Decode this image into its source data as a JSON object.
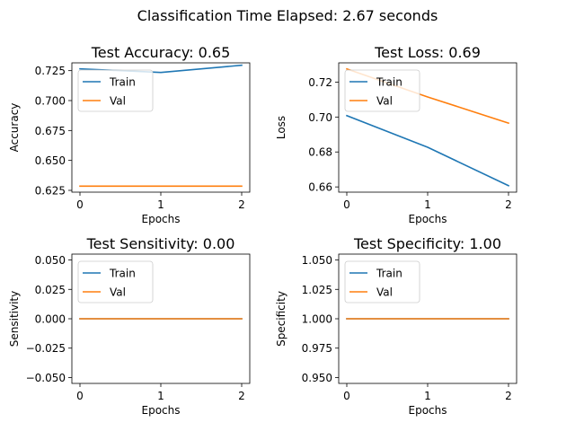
{
  "figure": {
    "suptitle": "Classification Time Elapsed: 2.67 seconds"
  },
  "chart_data": [
    {
      "type": "line",
      "title": "Test Accuracy: 0.65",
      "xlabel": "Epochs",
      "ylabel": "Accuracy",
      "x": [
        0,
        1,
        2
      ],
      "xticks": [
        "0",
        "1",
        "2"
      ],
      "xlim": [
        -0.1,
        2.1
      ],
      "ylim": [
        0.6235,
        0.7315
      ],
      "yticks": [
        "0.625",
        "0.650",
        "0.675",
        "0.700",
        "0.725"
      ],
      "grid": false,
      "legend": "upper left",
      "series": [
        {
          "name": "Train",
          "color": "#1f77b4",
          "values": [
            0.7265,
            0.7235,
            0.7295
          ]
        },
        {
          "name": "Val",
          "color": "#ff7f0e",
          "values": [
            0.6285,
            0.6285,
            0.6285
          ]
        }
      ]
    },
    {
      "type": "line",
      "title": "Test Loss: 0.69",
      "xlabel": "Epochs",
      "ylabel": "Loss",
      "x": [
        0,
        1,
        2
      ],
      "xticks": [
        "0",
        "1",
        "2"
      ],
      "xlim": [
        -0.1,
        2.1
      ],
      "ylim": [
        0.657,
        0.731
      ],
      "yticks": [
        "0.66",
        "0.68",
        "0.70",
        "0.72"
      ],
      "grid": false,
      "legend": "upper left",
      "series": [
        {
          "name": "Train",
          "color": "#1f77b4",
          "values": [
            0.7008,
            0.6827,
            0.6607
          ]
        },
        {
          "name": "Val",
          "color": "#ff7f0e",
          "values": [
            0.7275,
            0.7115,
            0.6965
          ]
        }
      ]
    },
    {
      "type": "line",
      "title": "Test Sensitivity: 0.00",
      "xlabel": "Epochs",
      "ylabel": "Sensitivity",
      "x": [
        0,
        1,
        2
      ],
      "xticks": [
        "0",
        "1",
        "2"
      ],
      "xlim": [
        -0.1,
        2.1
      ],
      "ylim": [
        -0.055,
        0.055
      ],
      "yticks": [
        "−0.050",
        "−0.025",
        "0.000",
        "0.025",
        "0.050"
      ],
      "grid": false,
      "legend": "upper left",
      "series": [
        {
          "name": "Train",
          "color": "#1f77b4",
          "values": [
            0.0,
            0.0,
            0.0
          ]
        },
        {
          "name": "Val",
          "color": "#ff7f0e",
          "values": [
            0.0,
            0.0,
            0.0
          ]
        }
      ]
    },
    {
      "type": "line",
      "title": "Test Specificity: 1.00",
      "xlabel": "Epochs",
      "ylabel": "Specificity",
      "x": [
        0,
        1,
        2
      ],
      "xticks": [
        "0",
        "1",
        "2"
      ],
      "xlim": [
        -0.1,
        2.1
      ],
      "ylim": [
        0.945,
        1.055
      ],
      "yticks": [
        "0.950",
        "0.975",
        "1.000",
        "1.025",
        "1.050"
      ],
      "grid": false,
      "legend": "upper left",
      "series": [
        {
          "name": "Train",
          "color": "#1f77b4",
          "values": [
            1.0,
            1.0,
            1.0
          ]
        },
        {
          "name": "Val",
          "color": "#ff7f0e",
          "values": [
            1.0,
            1.0,
            1.0
          ]
        }
      ]
    }
  ]
}
